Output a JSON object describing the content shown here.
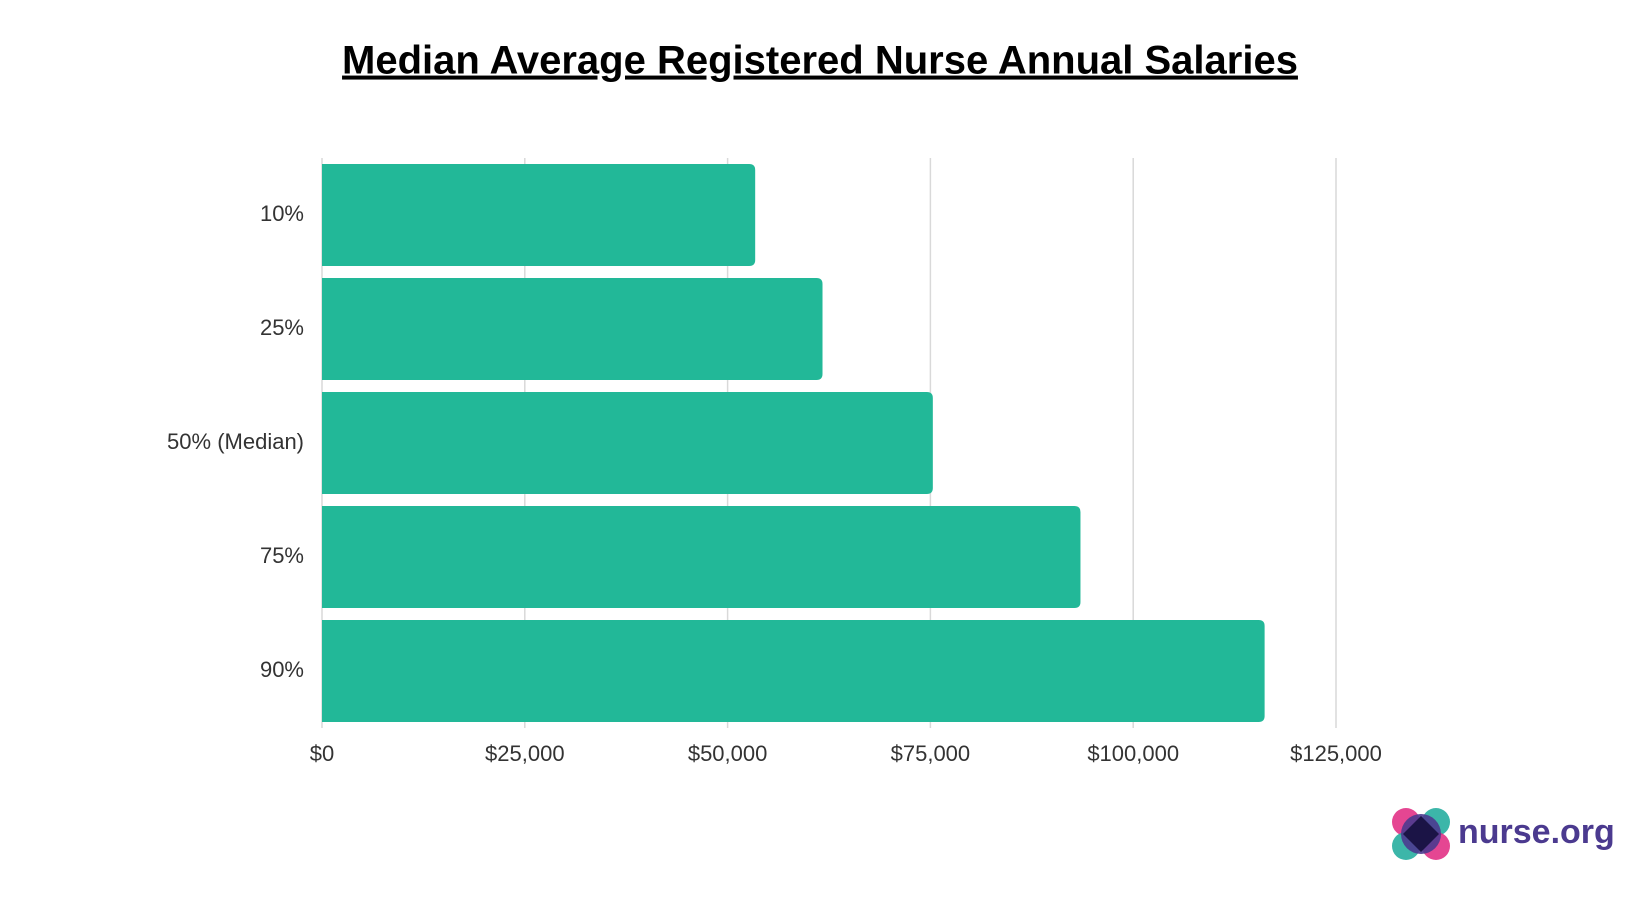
{
  "chart_data": {
    "type": "bar",
    "orientation": "horizontal",
    "title": "Median Average Registered Nurse Annual Salaries",
    "categories": [
      "10%",
      "25%",
      "50% (Median)",
      "75%",
      "90%"
    ],
    "values": [
      53400,
      61700,
      75300,
      93500,
      116200
    ],
    "color": "#22b898",
    "xlim": [
      0,
      125000
    ],
    "xticks": [
      {
        "value": 0,
        "label": "$0"
      },
      {
        "value": 25000,
        "label": "$25,000"
      },
      {
        "value": 50000,
        "label": "$50,000"
      },
      {
        "value": 75000,
        "label": "$75,000"
      },
      {
        "value": 100000,
        "label": "$100,000"
      },
      {
        "value": 125000,
        "label": "$125,000"
      }
    ],
    "grid": true,
    "branding": "nurse.org"
  }
}
